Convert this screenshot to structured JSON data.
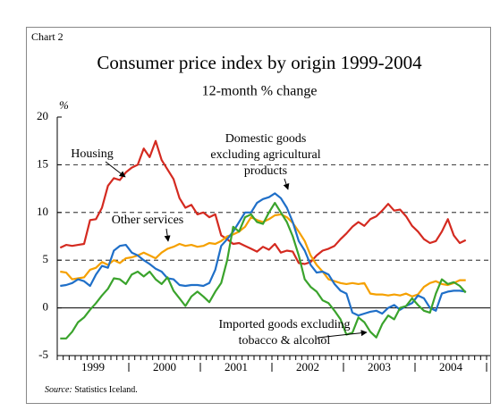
{
  "chart_data": {
    "type": "line",
    "chart_label": "Chart 2",
    "title": "Consumer price index by origin 1999-2004",
    "subtitle": "12-month % change",
    "y_axis_label": "%",
    "categories": [
      null,
      null,
      null,
      null,
      null,
      null,
      "1999",
      null,
      null,
      null,
      null,
      null,
      null,
      null,
      null,
      null,
      null,
      null,
      "2000",
      null,
      null,
      null,
      null,
      null,
      null,
      null,
      null,
      null,
      null,
      null,
      "2001",
      null,
      null,
      null,
      null,
      null,
      null,
      null,
      null,
      null,
      null,
      null,
      "2002",
      null,
      null,
      null,
      null,
      null,
      null,
      null,
      null,
      null,
      null,
      null,
      "2003",
      null,
      null,
      null,
      null,
      null,
      null,
      null,
      null,
      null,
      null,
      null,
      "2004",
      null,
      null
    ],
    "ylim": [
      -5,
      20
    ],
    "yticks": [
      -5,
      0,
      5,
      10,
      15,
      20
    ],
    "grid": true,
    "series": [
      {
        "name": [
          "Housing"
        ],
        "color": "#d42a20",
        "values": [
          6.3,
          6.6,
          6.5,
          6.6,
          6.7,
          9.2,
          9.3,
          10.5,
          12.8,
          13.6,
          13.4,
          14.2,
          14.7,
          15,
          16.7,
          15.8,
          17.5,
          15.5,
          14.5,
          13.5,
          11.5,
          10.5,
          10.8,
          9.8,
          10,
          9.5,
          9.8,
          7.6,
          7.2,
          6.7,
          6.8,
          6.5,
          6.2,
          5.9,
          6.4,
          6.1,
          6.7,
          5.8,
          6,
          5.9,
          4.7,
          4.6,
          4.8,
          5.5,
          6,
          6.2,
          6.5,
          7.2,
          7.8,
          8.5,
          9,
          8.6,
          9.3,
          9.6,
          10.2,
          10.9,
          10.2,
          10.3,
          9.6,
          8.6,
          8,
          7.2,
          6.8,
          7,
          8,
          9.3,
          7.6,
          6.8,
          7.1
        ]
      },
      {
        "name": [
          "Other services"
        ],
        "color": "#f5a000",
        "values": [
          3.8,
          3.7,
          3,
          3.1,
          3.2,
          4,
          4.2,
          4.8,
          4.5,
          5,
          4.7,
          5.2,
          5.3,
          5.5,
          5.8,
          5.5,
          5.2,
          5.8,
          6.2,
          6.4,
          6.7,
          6.5,
          6.6,
          6.4,
          6.5,
          6.8,
          6.7,
          7,
          7.5,
          7.7,
          8,
          8.5,
          9.5,
          9.2,
          9,
          9.3,
          9.7,
          9.8,
          9.5,
          8.9,
          8,
          7,
          5.5,
          4.5,
          3.8,
          3,
          2.8,
          2.6,
          2.5,
          2.6,
          2.5,
          2.6,
          1.5,
          1.4,
          1.4,
          1.3,
          1.4,
          1.3,
          1.5,
          1.2,
          1.4,
          2.2,
          2.6,
          2.8,
          2.5,
          2.4,
          2.6,
          2.9,
          2.9
        ]
      },
      {
        "name": [
          "Domestic goods",
          "excluding agricultural",
          "products"
        ],
        "color": "#1f6fc8",
        "values": [
          2.3,
          2.4,
          2.6,
          3,
          2.8,
          2.3,
          3.5,
          4.4,
          4.2,
          6,
          6.5,
          6.6,
          5.8,
          5.5,
          5,
          4.6,
          4.1,
          3.8,
          3.1,
          3,
          2.4,
          2.3,
          2.4,
          2.4,
          2.3,
          2.6,
          4,
          6.5,
          7.2,
          8,
          9,
          10,
          10,
          11,
          11.4,
          11.6,
          12,
          11.5,
          10.5,
          9,
          7,
          6,
          4.5,
          3.7,
          3.8,
          3.5,
          2.5,
          1.8,
          1.5,
          -0.5,
          -0.8,
          -0.6,
          -0.4,
          -0.3,
          -0.6,
          0,
          0.3,
          -0.2,
          0.2,
          0.5,
          1.3,
          1,
          0,
          -0.3,
          1.5,
          1.7,
          1.8,
          1.8,
          1.7
        ]
      },
      {
        "name": [
          "Imported goods excluding",
          "tobacco & alcohol"
        ],
        "color": "#3aa32c",
        "values": [
          -3.2,
          -3.2,
          -2.5,
          -1.5,
          -1,
          -0.2,
          0.5,
          1.3,
          2,
          3.1,
          3,
          2.5,
          3.5,
          3.8,
          3.3,
          3.8,
          3,
          2.5,
          3.2,
          1.8,
          1,
          0.2,
          1.2,
          1.7,
          1.2,
          0.6,
          1.7,
          2.6,
          5,
          8.5,
          8,
          9.5,
          9.8,
          9,
          8.8,
          10,
          11,
          10,
          9,
          7.5,
          5.5,
          3,
          2.2,
          1.7,
          0.8,
          0.5,
          -0.3,
          -1.2,
          -2.8,
          -2.6,
          -1,
          -1.5,
          -2.5,
          -3.1,
          -1.7,
          -0.8,
          -1.2,
          0,
          0.2,
          1,
          0.3,
          -0.3,
          -0.5,
          1.5,
          3,
          2.5,
          2.7,
          2.3,
          1.6
        ]
      }
    ],
    "source": {
      "label": "Source:",
      "text": "Statistics Iceland."
    }
  }
}
